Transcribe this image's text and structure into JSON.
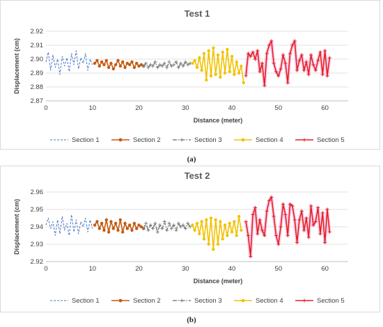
{
  "chart_data": [
    {
      "type": "line",
      "title": "Test 1",
      "xlabel": "Distance (meter)",
      "ylabel": "Displacement (cm)",
      "caption": "(a)",
      "xlim": [
        0,
        65
      ],
      "ylim": [
        2.87,
        2.92
      ],
      "xticks": [
        "0",
        "10",
        "20",
        "30",
        "40",
        "50",
        "60"
      ],
      "yticks": [
        "2.87",
        "2.88",
        "2.89",
        "2.90",
        "2.91",
        "2.92"
      ],
      "ytick_values": [
        2.87,
        2.88,
        2.89,
        2.9,
        2.91,
        2.92
      ],
      "grid": "horizontal",
      "legend_position": "bottom",
      "series": [
        {
          "name": "Section 1",
          "color": "#4472c4",
          "style": "dashed",
          "marker": "none",
          "x": [
            0,
            0.5,
            1,
            1.5,
            2,
            2.5,
            3,
            3.5,
            4,
            4.5,
            5,
            5.5,
            6,
            6.5,
            7,
            7.5,
            8,
            8.5,
            9,
            9.5,
            10
          ],
          "y": [
            2.898,
            2.905,
            2.892,
            2.903,
            2.894,
            2.9,
            2.889,
            2.902,
            2.895,
            2.901,
            2.891,
            2.904,
            2.896,
            2.906,
            2.893,
            2.901,
            2.897,
            2.904,
            2.892,
            2.9,
            2.896
          ]
        },
        {
          "name": "Section 2",
          "color": "#c55a11",
          "style": "solid",
          "marker": "circle",
          "x": [
            10.5,
            11,
            11.5,
            12,
            12.5,
            13,
            13.5,
            14,
            14.5,
            15,
            15.5,
            16,
            16.5,
            17,
            17.5,
            18,
            18.5,
            19,
            19.5,
            20,
            20.5,
            21
          ],
          "y": [
            2.897,
            2.899,
            2.895,
            2.898,
            2.896,
            2.899,
            2.894,
            2.897,
            2.893,
            2.896,
            2.899,
            2.895,
            2.898,
            2.894,
            2.897,
            2.896,
            2.898,
            2.894,
            2.897,
            2.895,
            2.896,
            2.895
          ]
        },
        {
          "name": "Section 3",
          "color": "#7f7f7f",
          "style": "dashdot",
          "marker": "plus",
          "x": [
            21,
            21.5,
            22,
            22.5,
            23,
            23.5,
            24,
            24.5,
            25,
            25.5,
            26,
            26.5,
            27,
            27.5,
            28,
            28.5,
            29,
            29.5,
            30,
            30.5,
            31
          ],
          "y": [
            2.895,
            2.897,
            2.894,
            2.896,
            2.895,
            2.898,
            2.894,
            2.896,
            2.895,
            2.897,
            2.894,
            2.898,
            2.895,
            2.896,
            2.898,
            2.894,
            2.897,
            2.895,
            2.898,
            2.896,
            2.897
          ]
        },
        {
          "name": "Section 4",
          "color": "#f2c200",
          "style": "solid",
          "marker": "circle",
          "x": [
            31.5,
            32,
            32.5,
            33,
            33.5,
            34,
            34.5,
            35,
            35.5,
            36,
            36.5,
            37,
            37.5,
            38,
            38.5,
            39,
            39.5,
            40,
            40.5,
            41,
            41.5,
            42,
            42.5
          ],
          "y": [
            2.897,
            2.899,
            2.894,
            2.901,
            2.892,
            2.904,
            2.885,
            2.906,
            2.888,
            2.908,
            2.889,
            2.903,
            2.887,
            2.905,
            2.89,
            2.907,
            2.891,
            2.902,
            2.889,
            2.898,
            2.89,
            2.895,
            2.883
          ]
        },
        {
          "name": "Section 5",
          "color": "#e61f1f",
          "style": "solid",
          "marker": "plus",
          "x": [
            43,
            43.5,
            44,
            44.5,
            45,
            45.5,
            46,
            46.5,
            47,
            47.5,
            48,
            48.5,
            49,
            49.5,
            50,
            50.5,
            51,
            51.5,
            52,
            52.5,
            53,
            53.5,
            54,
            54.5,
            55,
            55.5,
            56,
            56.5,
            57,
            57.5,
            58,
            58.5,
            59,
            59.5,
            60,
            60.5,
            61
          ],
          "y": [
            2.888,
            2.904,
            2.902,
            2.905,
            2.9,
            2.906,
            2.891,
            2.897,
            2.881,
            2.904,
            2.91,
            2.913,
            2.897,
            2.891,
            2.888,
            2.893,
            2.903,
            2.897,
            2.883,
            2.904,
            2.91,
            2.913,
            2.892,
            2.899,
            2.903,
            2.892,
            2.898,
            2.889,
            2.903,
            2.896,
            2.892,
            2.899,
            2.905,
            2.889,
            2.906,
            2.888,
            2.901
          ]
        }
      ]
    },
    {
      "type": "line",
      "title": "Test 2",
      "xlabel": "Distance (meter)",
      "ylabel": "Displacement (cm)",
      "caption": "(b)",
      "xlim": [
        0,
        65
      ],
      "ylim": [
        2.92,
        2.96
      ],
      "xticks": [
        "0",
        "10",
        "20",
        "30",
        "40",
        "50",
        "60"
      ],
      "yticks": [
        "2.92",
        "2.93",
        "2.94",
        "2.95",
        "2.96"
      ],
      "ytick_values": [
        2.92,
        2.93,
        2.94,
        2.95,
        2.96
      ],
      "grid": "horizontal",
      "legend_position": "bottom",
      "series": [
        {
          "name": "Section 1",
          "color": "#4472c4",
          "style": "dashed",
          "marker": "none",
          "x": [
            0,
            0.5,
            1,
            1.5,
            2,
            2.5,
            3,
            3.5,
            4,
            4.5,
            5,
            5.5,
            6,
            6.5,
            7,
            7.5,
            8,
            8.5,
            9,
            9.5,
            10
          ],
          "y": [
            2.941,
            2.945,
            2.939,
            2.943,
            2.935,
            2.944,
            2.936,
            2.946,
            2.938,
            2.942,
            2.935,
            2.947,
            2.937,
            2.944,
            2.936,
            2.943,
            2.94,
            2.945,
            2.937,
            2.944,
            2.939
          ]
        },
        {
          "name": "Section 2",
          "color": "#c55a11",
          "style": "solid",
          "marker": "circle",
          "x": [
            10.5,
            11,
            11.5,
            12,
            12.5,
            13,
            13.5,
            14,
            14.5,
            15,
            15.5,
            16,
            16.5,
            17,
            17.5,
            18,
            18.5,
            19,
            19.5,
            20,
            20.5,
            21
          ],
          "y": [
            2.941,
            2.943,
            2.939,
            2.942,
            2.938,
            2.944,
            2.937,
            2.943,
            2.939,
            2.942,
            2.938,
            2.944,
            2.937,
            2.942,
            2.939,
            2.941,
            2.938,
            2.942,
            2.939,
            2.941,
            2.94,
            2.939
          ]
        },
        {
          "name": "Section 3",
          "color": "#7f7f7f",
          "style": "dashdot",
          "marker": "plus",
          "x": [
            21,
            21.5,
            22,
            22.5,
            23,
            23.5,
            24,
            24.5,
            25,
            25.5,
            26,
            26.5,
            27,
            27.5,
            28,
            28.5,
            29,
            29.5,
            30,
            30.5,
            31
          ],
          "y": [
            2.939,
            2.942,
            2.938,
            2.941,
            2.939,
            2.942,
            2.937,
            2.941,
            2.939,
            2.943,
            2.938,
            2.942,
            2.939,
            2.941,
            2.938,
            2.942,
            2.94,
            2.941,
            2.939,
            2.942,
            2.94
          ]
        },
        {
          "name": "Section 4",
          "color": "#f2c200",
          "style": "solid",
          "marker": "circle",
          "x": [
            31.5,
            32,
            32.5,
            33,
            33.5,
            34,
            34.5,
            35,
            35.5,
            36,
            36.5,
            37,
            37.5,
            38,
            38.5,
            39,
            39.5,
            40,
            40.5,
            41,
            41.5,
            42
          ],
          "y": [
            2.941,
            2.938,
            2.942,
            2.936,
            2.943,
            2.933,
            2.944,
            2.93,
            2.945,
            2.927,
            2.944,
            2.93,
            2.943,
            2.933,
            2.941,
            2.935,
            2.942,
            2.937,
            2.943,
            2.935,
            2.946,
            2.938
          ]
        },
        {
          "name": "Section 5",
          "color": "#e61f1f",
          "style": "solid",
          "marker": "plus",
          "x": [
            43,
            43.5,
            44,
            44.5,
            45,
            45.5,
            46,
            46.5,
            47,
            47.5,
            48,
            48.5,
            49,
            49.5,
            50,
            50.5,
            51,
            51.5,
            52,
            52.5,
            53,
            53.5,
            54,
            54.5,
            55,
            55.5,
            56,
            56.5,
            57,
            57.5,
            58,
            58.5,
            59,
            59.5,
            60,
            60.5,
            61
          ],
          "y": [
            2.943,
            2.935,
            2.923,
            2.947,
            2.951,
            2.936,
            2.944,
            2.938,
            2.935,
            2.949,
            2.955,
            2.957,
            2.946,
            2.935,
            2.93,
            2.94,
            2.953,
            2.947,
            2.935,
            2.953,
            2.952,
            2.944,
            2.931,
            2.944,
            2.949,
            2.938,
            2.945,
            2.934,
            2.952,
            2.941,
            2.943,
            2.951,
            2.936,
            2.948,
            2.931,
            2.95,
            2.937
          ]
        }
      ]
    }
  ]
}
